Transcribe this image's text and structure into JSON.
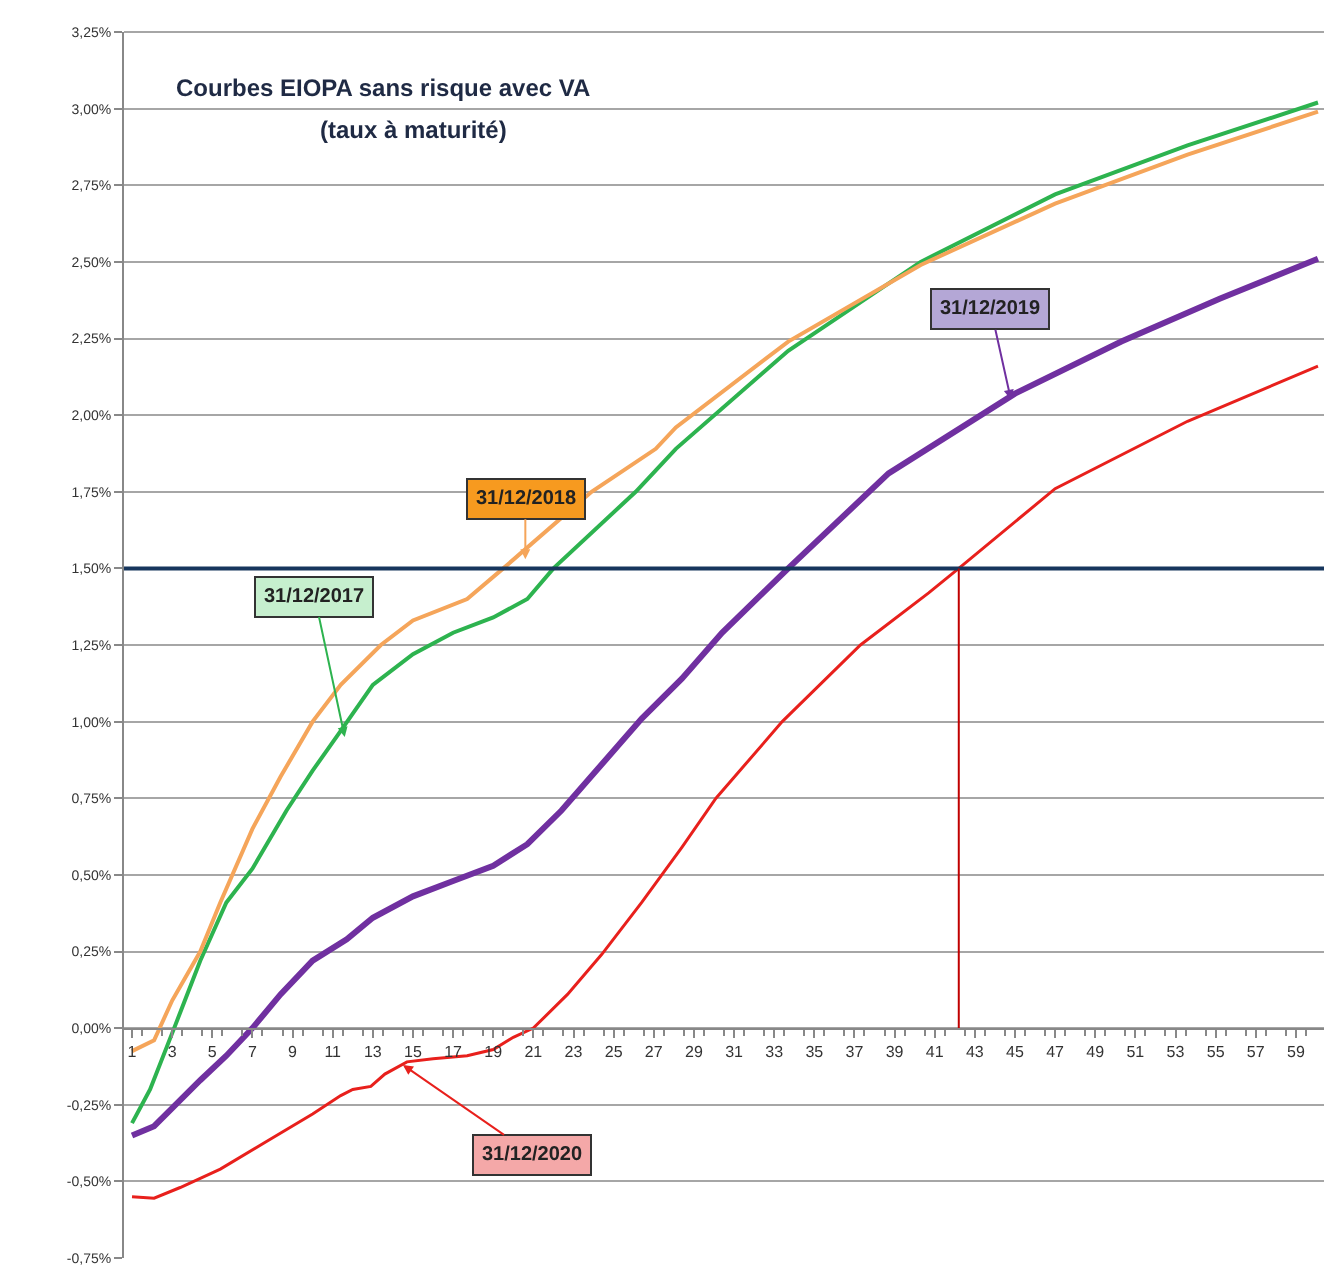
{
  "chart_data": {
    "type": "line",
    "title": "Courbes EIOPA sans risque avec VA",
    "subtitle": "(taux à maturité)",
    "series": [
      {
        "color": "#2db34f",
        "x": [
          1,
          1.9,
          3.1,
          4.4,
          5.7,
          7,
          8.7,
          10,
          11.4,
          13,
          15,
          17,
          19,
          20.7,
          22,
          26.1,
          27.1,
          28.1,
          33.7,
          40.3,
          47,
          53.6,
          60.1
        ],
        "values": [
          -0.31,
          -0.2,
          0.0,
          0.22,
          0.41,
          0.52,
          0.71,
          0.84,
          0.97,
          1.12,
          1.22,
          1.29,
          1.34,
          1.4,
          1.5,
          1.75,
          1.82,
          1.89,
          2.21,
          2.5,
          2.72,
          2.88,
          3.02
        ]
      },
      {
        "color": "#f5a55a",
        "x": [
          1,
          2.1,
          3,
          4.4,
          5.4,
          7,
          8.4,
          10,
          11.4,
          13.4,
          15,
          17.7,
          19.5,
          23.9,
          27.1,
          28.1,
          33.7,
          40.3,
          47,
          53.6,
          60.1
        ],
        "values": [
          -0.075,
          -0.04,
          0.09,
          0.25,
          0.41,
          0.65,
          0.82,
          1.0,
          1.12,
          1.25,
          1.33,
          1.4,
          1.5,
          1.75,
          1.89,
          1.96,
          2.24,
          2.49,
          2.69,
          2.85,
          2.99
        ]
      },
      {
        "color": "#7030a0",
        "x": [
          1,
          2.1,
          4.4,
          5.7,
          7,
          8.4,
          10,
          11.7,
          13,
          15,
          17,
          19,
          20.7,
          22.4,
          24.4,
          26.4,
          28.4,
          30.4,
          33.7,
          38.7,
          45,
          50.3,
          55.2,
          60.1
        ],
        "values": [
          -0.35,
          -0.32,
          -0.17,
          -0.09,
          0.0,
          0.11,
          0.22,
          0.29,
          0.36,
          0.43,
          0.48,
          0.53,
          0.6,
          0.71,
          0.86,
          1.01,
          1.14,
          1.29,
          1.5,
          1.81,
          2.07,
          2.24,
          2.38,
          2.51
        ]
      },
      {
        "color": "#e8201c",
        "x": [
          1,
          2.1,
          3.4,
          5.4,
          7.7,
          10,
          11.4,
          12,
          12.9,
          13.6,
          14.7,
          16,
          17.7,
          19,
          20,
          21,
          22.7,
          24.4,
          26.4,
          28.4,
          30.1,
          33.4,
          37.3,
          40.7,
          42.2,
          47,
          53.6,
          60.1
        ],
        "values": [
          -0.55,
          -0.555,
          -0.52,
          -0.46,
          -0.37,
          -0.28,
          -0.22,
          -0.2,
          -0.19,
          -0.15,
          -0.11,
          -0.1,
          -0.09,
          -0.07,
          -0.03,
          0.0,
          0.11,
          0.24,
          0.41,
          0.59,
          0.75,
          1.0,
          1.25,
          1.42,
          1.5,
          1.76,
          1.98,
          2.16
        ]
      }
    ],
    "annotations": [
      {
        "text": "31/12/2017",
        "x": 11.6,
        "y": 0.95
      },
      {
        "text": "31/12/2018",
        "x": 20.6,
        "y": 1.53
      },
      {
        "text": "31/12/2019",
        "x": 44.8,
        "y": 2.05
      },
      {
        "text": "31/12/2020",
        "x": 14.5,
        "y": -0.12
      }
    ],
    "ref_lines": [
      {
        "axis": "y",
        "value": 1.5,
        "color": "#17365d"
      },
      {
        "axis": "x",
        "value": 42.2,
        "color": "#c00000"
      }
    ],
    "xlim": [
      0.6,
      60.4
    ],
    "xticks": [
      1,
      3,
      5,
      7,
      9,
      11,
      13,
      15,
      17,
      19,
      21,
      23,
      25,
      27,
      29,
      31,
      33,
      35,
      37,
      39,
      41,
      43,
      45,
      47,
      49,
      51,
      53,
      55,
      57,
      59
    ],
    "ylim": [
      -0.75,
      3.25
    ],
    "yticks": [
      {
        "value": -0.75,
        "label": "-0,75%"
      },
      {
        "value": -0.5,
        "label": "-0,50%"
      },
      {
        "value": -0.25,
        "label": "-0,25%"
      },
      {
        "value": 0,
        "label": "0,00%"
      },
      {
        "value": 0.25,
        "label": "0,25%"
      },
      {
        "value": 0.5,
        "label": "0,50%"
      },
      {
        "value": 0.75,
        "label": "0,75%"
      },
      {
        "value": 1,
        "label": "1,00%"
      },
      {
        "value": 1.25,
        "label": "1,25%"
      },
      {
        "value": 1.5,
        "label": "1,50%"
      },
      {
        "value": 1.75,
        "label": "1,75%"
      },
      {
        "value": 2,
        "label": "2,00%"
      },
      {
        "value": 2.25,
        "label": "2,25%"
      },
      {
        "value": 2.5,
        "label": "2,50%"
      },
      {
        "value": 2.75,
        "label": "2,75%"
      },
      {
        "value": 3,
        "label": "3,00%"
      },
      {
        "value": 3.25,
        "label": "3,25%"
      }
    ],
    "grid": "y",
    "legend": false,
    "marker": "none",
    "line_style": "solid"
  }
}
